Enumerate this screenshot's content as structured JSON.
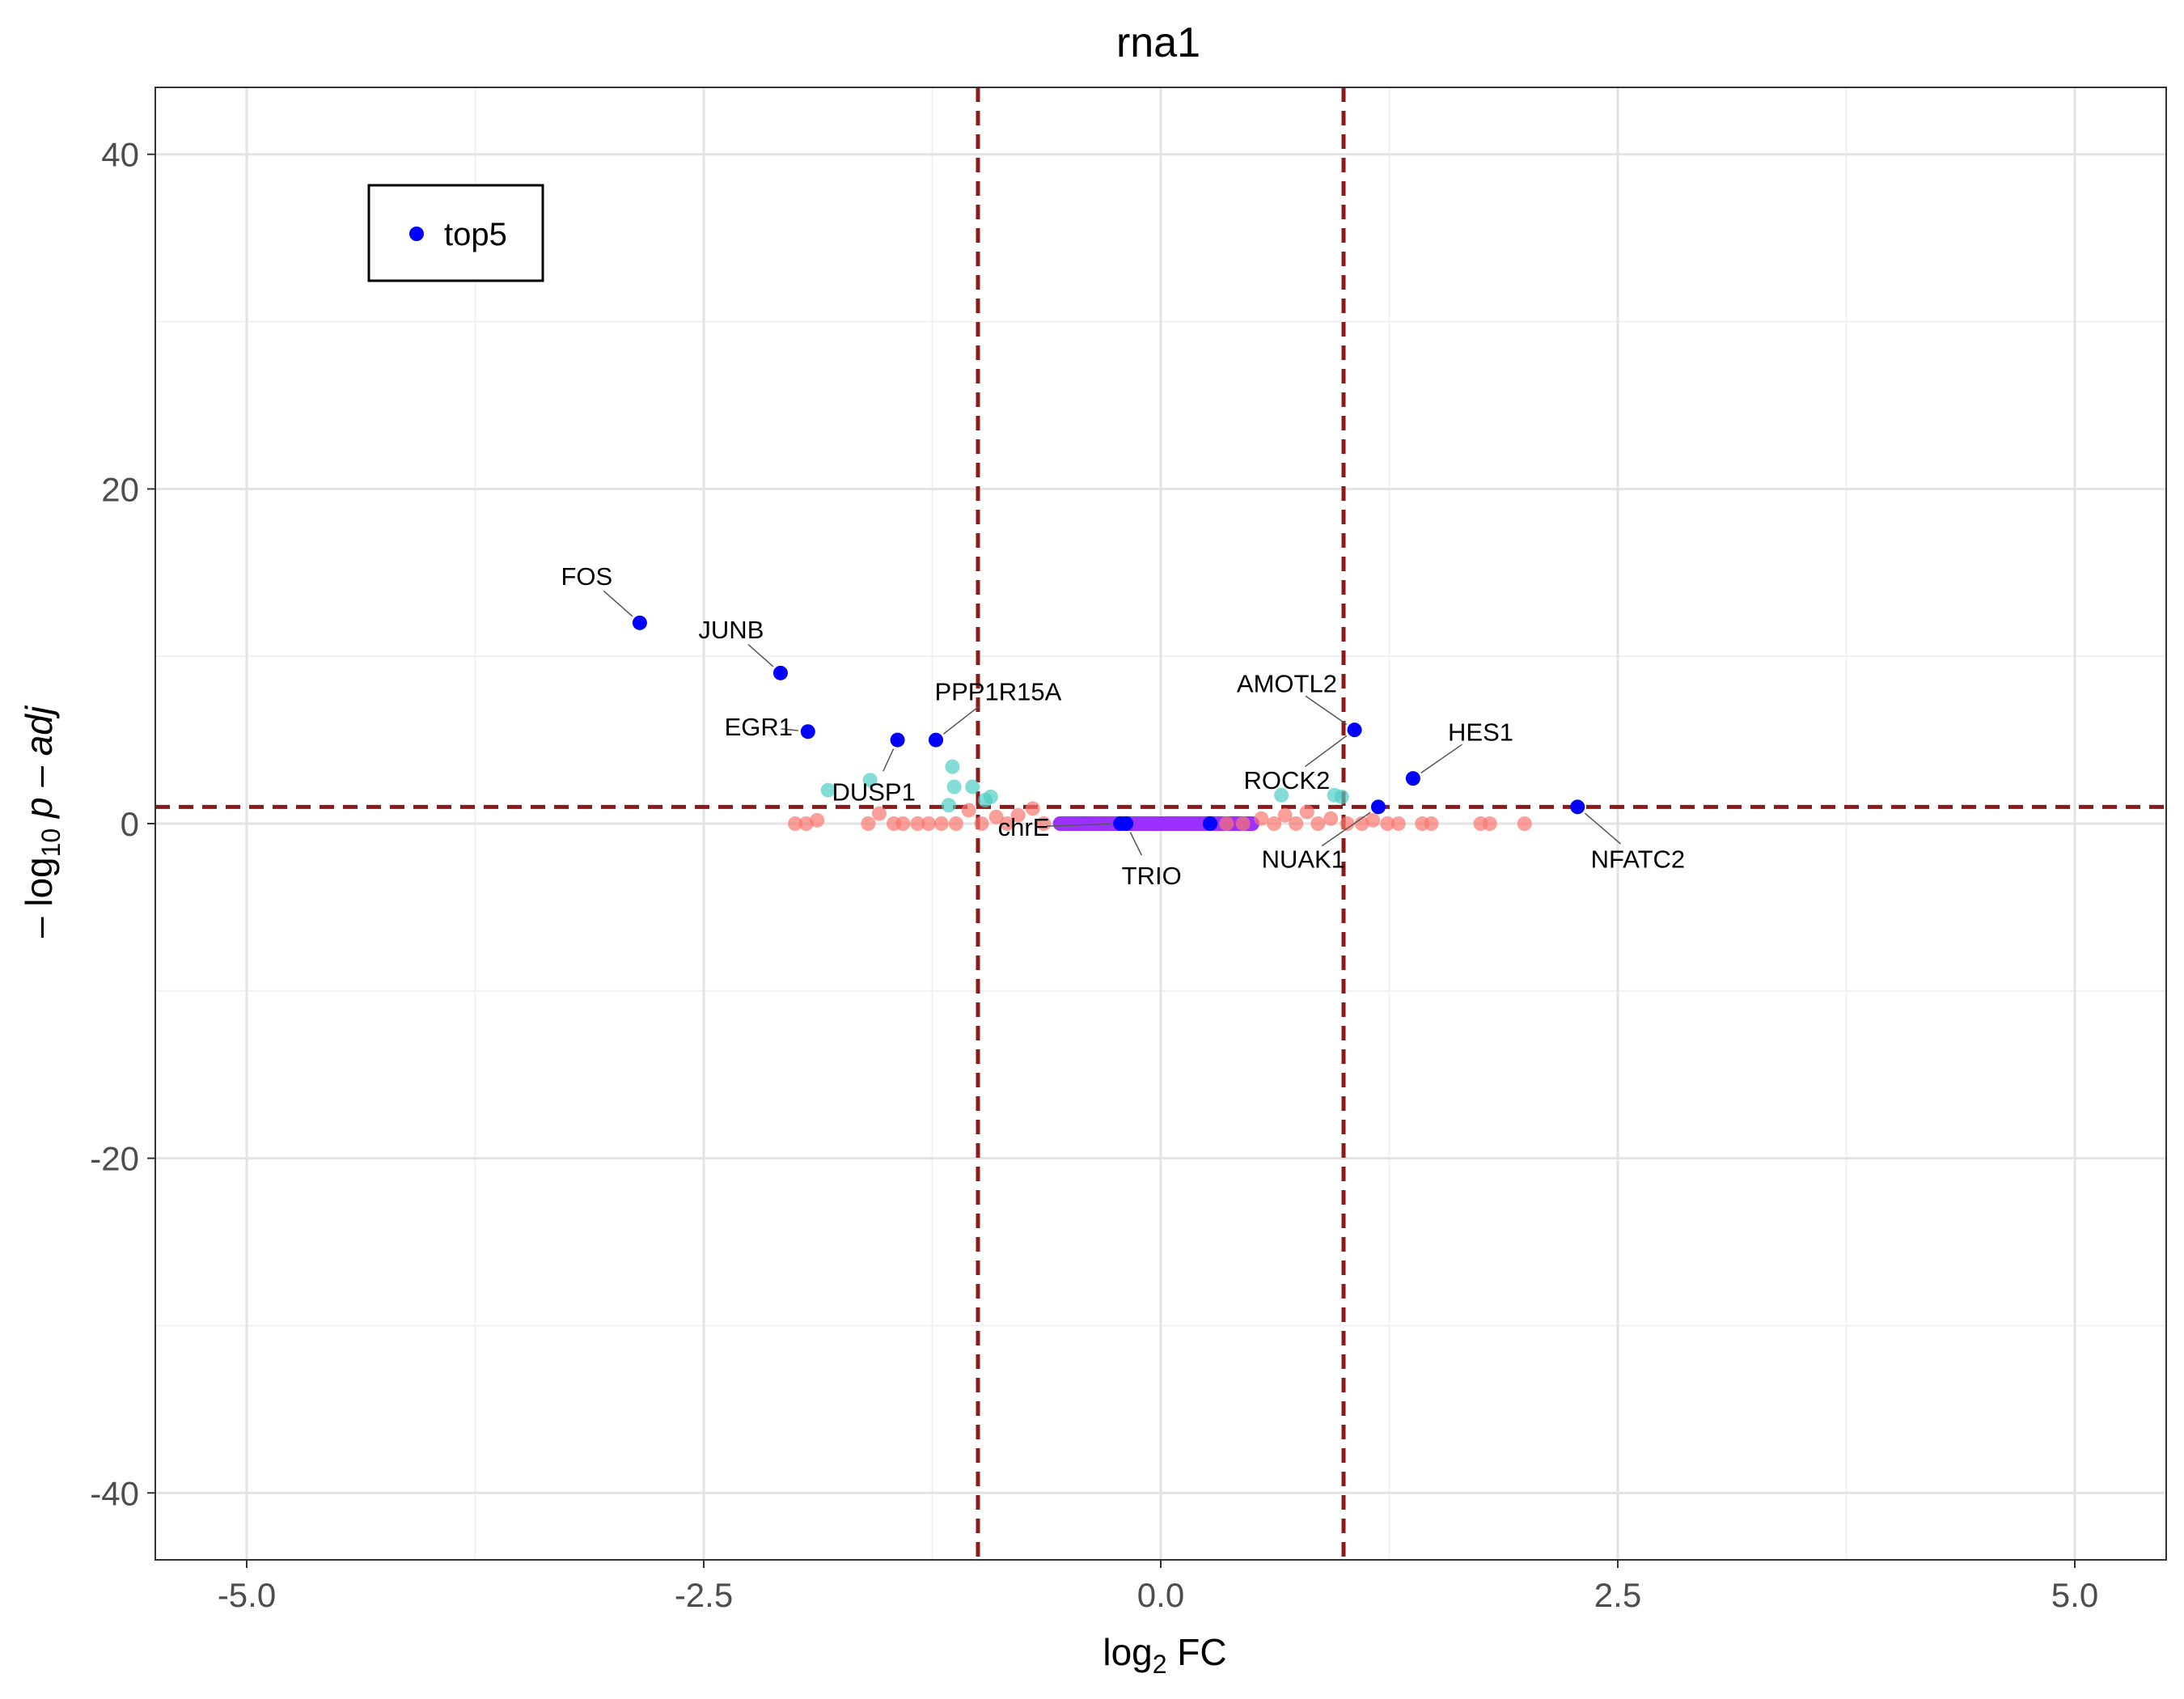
{
  "chart_data": {
    "type": "scatter",
    "title": "rna1",
    "xlabel": {
      "base": "log",
      "sub": "2",
      "rest": " FC"
    },
    "ylabel": {
      "prefix": "– log",
      "sub": "10",
      "rest": " p – adj"
    },
    "xlim": [
      -5.5,
      5.5
    ],
    "ylim": [
      -44,
      44
    ],
    "x_ticks": [
      {
        "value": -5,
        "label": "-5.0"
      },
      {
        "value": -2.5,
        "label": "-2.5"
      },
      {
        "value": 0,
        "label": "0.0"
      },
      {
        "value": 2.5,
        "label": "2.5"
      },
      {
        "value": 5,
        "label": "5.0"
      }
    ],
    "y_ticks": [
      {
        "value": 40,
        "label": "40"
      },
      {
        "value": 20,
        "label": "20"
      },
      {
        "value": 0,
        "label": "0"
      },
      {
        "value": -20,
        "label": "-20"
      },
      {
        "value": -40,
        "label": "-40"
      }
    ],
    "grid": true,
    "thresholds": {
      "x": [
        -1,
        1
      ],
      "y": 1,
      "color": "#8b1a1a"
    },
    "legend": {
      "position": "top-left",
      "entries": [
        {
          "name": "top5",
          "color": "#0000ff"
        }
      ]
    },
    "colors": {
      "top": "#0000ff",
      "significant": "#4ecdc4",
      "nonsignificant": "#f8766d",
      "region": "#9b30ff"
    },
    "region_band": {
      "x_range": [
        -0.55,
        0.5
      ],
      "y": 0
    },
    "series": [
      {
        "name": "top5",
        "color": "#0000ff",
        "points": [
          {
            "x": -2.85,
            "y": 12.0
          },
          {
            "x": -2.08,
            "y": 9.0
          },
          {
            "x": -1.93,
            "y": 5.5
          },
          {
            "x": -1.44,
            "y": 5.0
          },
          {
            "x": -1.23,
            "y": 5.0
          },
          {
            "x": 1.06,
            "y": 5.6
          },
          {
            "x": 1.38,
            "y": 2.7
          },
          {
            "x": 1.19,
            "y": 1.0
          },
          {
            "x": 2.28,
            "y": 1.0
          },
          {
            "x": -0.22,
            "y": 0.0
          },
          {
            "x": -0.19,
            "y": 0.0
          },
          {
            "x": 0.27,
            "y": 0.0
          }
        ]
      },
      {
        "color": "#4ecdc4",
        "points": [
          {
            "x": -1.59,
            "y": 2.6
          },
          {
            "x": -1.82,
            "y": 2.0
          },
          {
            "x": -1.14,
            "y": 3.4
          },
          {
            "x": -1.13,
            "y": 2.2
          },
          {
            "x": -1.03,
            "y": 2.2
          },
          {
            "x": -0.93,
            "y": 1.6
          },
          {
            "x": -0.96,
            "y": 1.4
          },
          {
            "x": -1.16,
            "y": 1.1
          },
          {
            "x": 0.66,
            "y": 1.7
          },
          {
            "x": 0.95,
            "y": 1.7
          },
          {
            "x": 0.99,
            "y": 1.6
          }
        ]
      },
      {
        "color": "#f8766d",
        "points": [
          {
            "x": -2.0,
            "y": 0.0
          },
          {
            "x": -1.94,
            "y": 0.0
          },
          {
            "x": -1.88,
            "y": 0.2
          },
          {
            "x": -1.6,
            "y": 0.0
          },
          {
            "x": -1.54,
            "y": 0.6
          },
          {
            "x": -1.46,
            "y": 0.0
          },
          {
            "x": -1.41,
            "y": 0.0
          },
          {
            "x": -1.33,
            "y": 0.0
          },
          {
            "x": -1.27,
            "y": 0.0
          },
          {
            "x": -1.2,
            "y": 0.0
          },
          {
            "x": -1.12,
            "y": 0.0
          },
          {
            "x": -1.05,
            "y": 0.8
          },
          {
            "x": -0.98,
            "y": 0.0
          },
          {
            "x": -0.9,
            "y": 0.4
          },
          {
            "x": -0.84,
            "y": 0.0
          },
          {
            "x": -0.78,
            "y": 0.5
          },
          {
            "x": -0.7,
            "y": 0.9
          },
          {
            "x": -0.64,
            "y": 0.0
          },
          {
            "x": 0.36,
            "y": 0.0
          },
          {
            "x": 0.45,
            "y": 0.0
          },
          {
            "x": 0.55,
            "y": 0.3
          },
          {
            "x": 0.62,
            "y": 0.0
          },
          {
            "x": 0.68,
            "y": 0.5
          },
          {
            "x": 0.74,
            "y": 0.0
          },
          {
            "x": 0.8,
            "y": 0.7
          },
          {
            "x": 0.86,
            "y": 0.0
          },
          {
            "x": 0.93,
            "y": 0.3
          },
          {
            "x": 1.02,
            "y": 0.0
          },
          {
            "x": 1.1,
            "y": 0.0
          },
          {
            "x": 1.16,
            "y": 0.2
          },
          {
            "x": 1.24,
            "y": 0.0
          },
          {
            "x": 1.3,
            "y": 0.0
          },
          {
            "x": 1.43,
            "y": 0.0
          },
          {
            "x": 1.48,
            "y": 0.0
          },
          {
            "x": 1.75,
            "y": 0.0
          },
          {
            "x": 1.8,
            "y": 0.0
          },
          {
            "x": 1.99,
            "y": 0.0
          }
        ]
      }
    ],
    "annotations": [
      {
        "text": "FOS",
        "x": -3.14,
        "y": 14.8
      },
      {
        "text": "JUNB",
        "x": -2.35,
        "y": 11.6
      },
      {
        "text": "EGR1",
        "x": -2.2,
        "y": 5.8
      },
      {
        "text": "PPP1R15A",
        "x": -0.89,
        "y": 7.9
      },
      {
        "text": "DUSP1",
        "x": -1.57,
        "y": 1.9
      },
      {
        "text": "AMOTL2",
        "x": 0.69,
        "y": 8.4
      },
      {
        "text": "HES1",
        "x": 1.75,
        "y": 5.5
      },
      {
        "text": "ROCK2",
        "x": 0.69,
        "y": 2.6
      },
      {
        "text": "chrE",
        "x": -0.75,
        "y": -0.2
      },
      {
        "text": "TRIO",
        "x": -0.05,
        "y": -3.1
      },
      {
        "text": "NUAK1",
        "x": 0.78,
        "y": -2.1
      },
      {
        "text": "NFATC2",
        "x": 2.61,
        "y": -2.1
      }
    ]
  }
}
